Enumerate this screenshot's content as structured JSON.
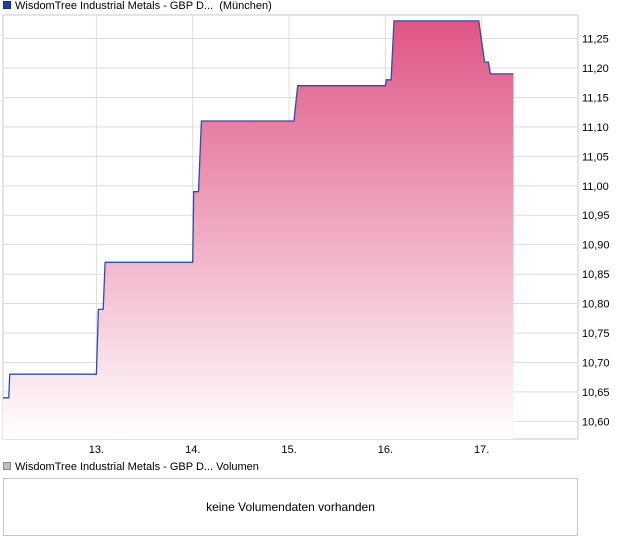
{
  "price_legend": {
    "name": "WisdomTree Industrial Metals - GBP D...",
    "exchange": "(München)"
  },
  "volume_legend": {
    "label": "WisdomTree Industrial Metals - GBP D... Volumen"
  },
  "volume_panel": {
    "message": "keine Volumendaten vorhanden"
  },
  "colors": {
    "line": "#2a4fa8",
    "fill_top": "#e05585",
    "fill_bottom": "#ffffff",
    "grid": "#dddddd"
  },
  "chart_data": {
    "type": "area",
    "title": "",
    "xlabel": "",
    "ylabel": "",
    "x_ticks": [
      {
        "label": "13.",
        "x": 1
      },
      {
        "label": "14.",
        "x": 2
      },
      {
        "label": "15.",
        "x": 3
      },
      {
        "label": "16.",
        "x": 4
      },
      {
        "label": "17.",
        "x": 5
      }
    ],
    "y_ticks": [
      "11,25",
      "11,20",
      "11,15",
      "11,10",
      "11,05",
      "11,00",
      "10,95",
      "10,90",
      "10,85",
      "10,80",
      "10,75",
      "10,70",
      "10,65",
      "10,60"
    ],
    "ylim": [
      10.57,
      11.29
    ],
    "xlim": [
      0.03,
      6.0
    ],
    "y_grid_values": [
      11.25,
      11.2,
      11.15,
      11.1,
      11.05,
      11.0,
      10.95,
      10.9,
      10.85,
      10.8,
      10.75,
      10.7,
      10.65,
      10.6
    ],
    "grid": true,
    "series": [
      {
        "points": [
          [
            0.03,
            10.64
          ],
          [
            0.09,
            10.64
          ],
          [
            0.1,
            10.68
          ],
          [
            1.0,
            10.68
          ],
          [
            1.02,
            10.79
          ],
          [
            1.07,
            10.79
          ],
          [
            1.09,
            10.87
          ],
          [
            2.0,
            10.87
          ],
          [
            2.01,
            10.99
          ],
          [
            2.06,
            10.99
          ],
          [
            2.09,
            11.11
          ],
          [
            3.05,
            11.11
          ],
          [
            3.09,
            11.17
          ],
          [
            4.0,
            11.17
          ],
          [
            4.01,
            11.18
          ],
          [
            4.06,
            11.18
          ],
          [
            4.09,
            11.28
          ],
          [
            4.97,
            11.28
          ],
          [
            5.03,
            11.21
          ],
          [
            5.07,
            11.21
          ],
          [
            5.09,
            11.19
          ],
          [
            5.33,
            11.19
          ]
        ]
      }
    ]
  }
}
